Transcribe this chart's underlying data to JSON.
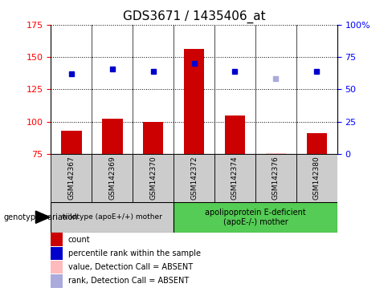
{
  "title": "GDS3671 / 1435406_at",
  "samples": [
    "GSM142367",
    "GSM142369",
    "GSM142370",
    "GSM142372",
    "GSM142374",
    "GSM142376",
    "GSM142380"
  ],
  "bar_values": [
    93,
    102,
    100,
    156,
    105,
    75.5,
    91
  ],
  "bar_bottom": 75,
  "bar_colors": [
    "#cc0000",
    "#cc0000",
    "#cc0000",
    "#cc0000",
    "#cc0000",
    "#ffbbbb",
    "#cc0000"
  ],
  "rank_values": [
    137,
    141,
    139,
    145,
    139,
    133,
    139
  ],
  "rank_colors": [
    "#0000cc",
    "#0000cc",
    "#0000cc",
    "#0000cc",
    "#0000cc",
    "#aaaadd",
    "#0000cc"
  ],
  "rank_is_absent": [
    false,
    false,
    false,
    false,
    false,
    true,
    false
  ],
  "ylim_left": [
    75,
    175
  ],
  "ylim_right": [
    0,
    100
  ],
  "yticks_left": [
    75,
    100,
    125,
    150,
    175
  ],
  "yticks_right": [
    0,
    25,
    50,
    75,
    100
  ],
  "ytick_labels_right": [
    "0",
    "25",
    "50",
    "75",
    "100%"
  ],
  "group1_label": "wildtype (apoE+/+) mother",
  "group2_label": "apolipoprotein E-deficient\n(apoE-/-) mother",
  "group1_indices": [
    0,
    1,
    2
  ],
  "group2_indices": [
    3,
    4,
    5,
    6
  ],
  "genotype_label": "genotype/variation",
  "legend_items": [
    {
      "label": "count",
      "color": "#cc0000"
    },
    {
      "label": "percentile rank within the sample",
      "color": "#0000cc"
    },
    {
      "label": "value, Detection Call = ABSENT",
      "color": "#ffbbbb"
    },
    {
      "label": "rank, Detection Call = ABSENT",
      "color": "#aaaadd"
    }
  ],
  "background_color": "#ffffff",
  "group1_bg": "#cccccc",
  "group2_bg": "#55cc55",
  "sample_bg": "#cccccc",
  "title_fontsize": 11,
  "tick_fontsize": 8,
  "label_fontsize": 7
}
